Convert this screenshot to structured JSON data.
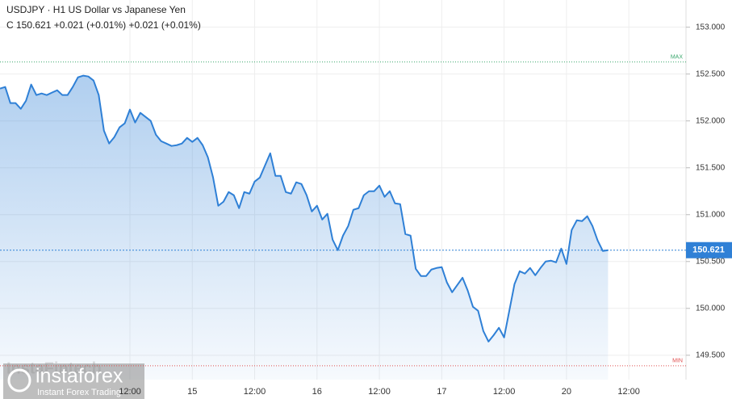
{
  "chart_data": {
    "type": "area",
    "title": "USDJPY · H1 US Dollar vs Japanese Yen",
    "subtitle": "C 150.621 +0.021 (+0.01%) +0.021 (+0.01%)",
    "x": [
      0,
      1,
      2,
      3,
      4,
      5,
      6,
      7,
      8,
      9,
      10,
      11,
      12,
      13,
      14,
      15,
      16,
      17,
      18,
      19,
      20,
      21,
      22,
      23,
      24,
      25,
      26,
      27,
      28,
      29,
      30,
      31,
      32,
      33,
      34,
      35,
      36,
      37,
      38,
      39,
      40,
      41,
      42,
      43,
      44,
      45,
      46,
      47,
      48,
      49,
      50,
      51,
      52,
      53,
      54,
      55,
      56,
      57,
      58,
      59,
      60,
      61,
      62,
      63,
      64,
      65,
      66,
      67,
      68,
      69,
      70,
      71,
      72,
      73,
      74,
      75,
      76,
      77,
      78,
      79,
      80,
      81,
      82,
      83,
      84,
      85,
      86,
      87,
      88,
      89,
      90,
      91,
      92,
      93,
      94,
      95,
      96,
      97,
      98,
      99,
      100,
      101,
      102,
      103,
      104,
      105,
      106,
      107,
      108,
      109,
      110,
      111,
      112,
      113,
      114,
      115,
      116,
      117
    ],
    "series": [
      {
        "name": "USDJPY",
        "color": "#2f80d6",
        "values": [
          152.345,
          152.362,
          152.19,
          152.19,
          152.129,
          152.215,
          152.388,
          152.276,
          152.293,
          152.276,
          152.302,
          152.327,
          152.276,
          152.276,
          152.362,
          152.465,
          152.483,
          152.474,
          152.431,
          152.276,
          151.896,
          151.759,
          151.827,
          151.931,
          151.974,
          152.121,
          151.983,
          152.086,
          152.043,
          152.0,
          151.853,
          151.784,
          151.759,
          151.733,
          151.741,
          151.759,
          151.819,
          151.776,
          151.819,
          151.741,
          151.612,
          151.396,
          151.095,
          151.138,
          151.241,
          151.207,
          151.069,
          151.241,
          151.224,
          151.353,
          151.396,
          151.526,
          151.655,
          151.414,
          151.414,
          151.241,
          151.224,
          151.345,
          151.327,
          151.207,
          151.034,
          151.095,
          150.948,
          151.009,
          150.733,
          150.621,
          150.776,
          150.879,
          151.052,
          151.069,
          151.207,
          151.25,
          151.25,
          151.31,
          151.19,
          151.25,
          151.121,
          151.112,
          150.793,
          150.776,
          150.422,
          150.345,
          150.345,
          150.414,
          150.431,
          150.44,
          150.276,
          150.172,
          150.25,
          150.327,
          150.19,
          150.017,
          149.974,
          149.759,
          149.646,
          149.715,
          149.793,
          149.69,
          149.974,
          150.259,
          150.396,
          150.371,
          150.431,
          150.353,
          150.431,
          150.5,
          150.509,
          150.491,
          150.638,
          150.474,
          150.836,
          150.94,
          150.931,
          150.983,
          150.879,
          150.724,
          150.612,
          150.621
        ]
      }
    ],
    "xlim": [
      0,
      132
    ],
    "xticks": [
      {
        "value": 25,
        "label": "12:00"
      },
      {
        "value": 37,
        "label": "15"
      },
      {
        "value": 49,
        "label": "12:00"
      },
      {
        "value": 61,
        "label": "16"
      },
      {
        "value": 73,
        "label": "12:00"
      },
      {
        "value": 85,
        "label": "17"
      },
      {
        "value": 97,
        "label": "12:00"
      },
      {
        "value": 109,
        "label": "20"
      },
      {
        "value": 121,
        "label": "12:00"
      }
    ],
    "ylim": [
      149.24,
      153.29
    ],
    "yticks": [
      {
        "value": 149.5,
        "label": "149.500"
      },
      {
        "value": 150,
        "label": "150.000"
      },
      {
        "value": 150.5,
        "label": "150.500"
      },
      {
        "value": 151,
        "label": "151.000"
      },
      {
        "value": 151.5,
        "label": "151.500"
      },
      {
        "value": 152,
        "label": "152.000"
      },
      {
        "value": 152.5,
        "label": "152.500"
      },
      {
        "value": 153,
        "label": "153.000"
      }
    ],
    "grid": true,
    "last": 150.621,
    "max": {
      "value": 152.629,
      "label": "MAX"
    },
    "min": {
      "value": 149.388,
      "label": "MIN"
    }
  },
  "watermark": {
    "brand": "instaforex",
    "tagline": "Instant Forex Trading",
    "faded": "InstaFintech"
  }
}
